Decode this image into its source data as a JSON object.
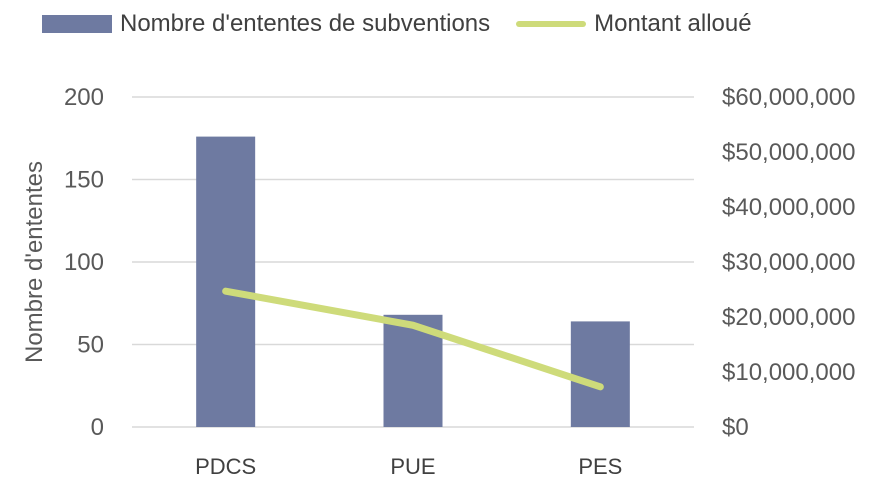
{
  "chart_data": {
    "type": "bar",
    "categories": [
      "PDCS",
      "PUE",
      "PES"
    ],
    "series": [
      {
        "name": "Nombre d'ententes de subventions",
        "type": "bar",
        "axis": "left",
        "values": [
          176,
          68,
          64
        ],
        "color": "#6E7AA1"
      },
      {
        "name": "Montant alloué",
        "type": "line",
        "axis": "right",
        "values": [
          24700000,
          18500000,
          7300000
        ],
        "color": "#CEDB7A"
      }
    ],
    "ylabel": "Nombre d'ententes",
    "ylim": [
      0,
      200
    ],
    "y_ticks": [
      "0",
      "50",
      "100",
      "150",
      "200"
    ],
    "y_tick_values": [
      0,
      50,
      100,
      150,
      200
    ],
    "y2lim": [
      0,
      60000000
    ],
    "y2_ticks": [
      "$0",
      "$10,000,000",
      "$20,000,000",
      "$30,000,000",
      "$40,000,000",
      "$50,000,000",
      "$60,000,000"
    ],
    "y2_tick_values": [
      0,
      10000000,
      20000000,
      30000000,
      40000000,
      50000000,
      60000000
    ],
    "grid": true,
    "legend_position": "top",
    "gridline_color": "#D9D9D9"
  }
}
